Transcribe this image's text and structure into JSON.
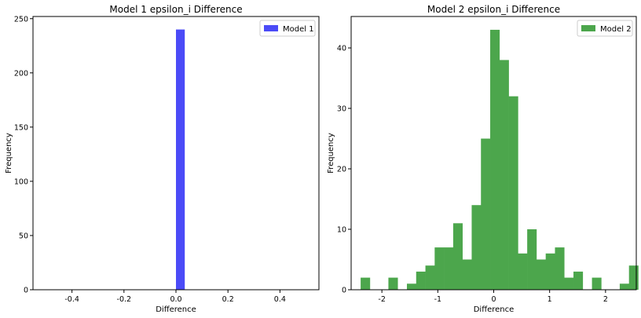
{
  "chart_data": [
    {
      "type": "bar",
      "title": "Model 1 epsilon_i Difference",
      "xlabel": "Difference",
      "ylabel": "Frequency",
      "xlim": [
        -0.55,
        0.55
      ],
      "ylim": [
        0,
        252
      ],
      "xticks": [
        -0.4,
        -0.2,
        0.0,
        0.2,
        0.4
      ],
      "xtick_labels": [
        "-0.4",
        "-0.2",
        "0.0",
        "0.2",
        "0.4"
      ],
      "yticks": [
        0,
        50,
        100,
        150,
        200,
        250
      ],
      "ytick_labels": [
        "0",
        "50",
        "100",
        "150",
        "200",
        "250"
      ],
      "legend_position": "top-right",
      "series": [
        {
          "name": "Model 1",
          "color": "#4b4bf7",
          "bins": [
            [
              0.0,
              0.033,
              240
            ]
          ]
        }
      ]
    },
    {
      "type": "bar",
      "title": "Model 2 epsilon_i Difference",
      "xlabel": "Difference",
      "ylabel": "Frequency",
      "xlim": [
        -2.55,
        2.55
      ],
      "ylim": [
        0,
        45.2
      ],
      "xticks": [
        -2,
        -1,
        0,
        1,
        2
      ],
      "xtick_labels": [
        "-2",
        "-1",
        "0",
        "1",
        "2"
      ],
      "yticks": [
        0,
        10,
        20,
        30,
        40
      ],
      "ytick_labels": [
        "0",
        "10",
        "20",
        "30",
        "40"
      ],
      "legend_position": "top-right",
      "series": [
        {
          "name": "Model 2",
          "color": "#4ca64c",
          "bin_start": -2.38,
          "bin_width": 0.1655,
          "counts": [
            2,
            0,
            0,
            2,
            0,
            1,
            3,
            4,
            7,
            7,
            11,
            5,
            14,
            25,
            43,
            38,
            32,
            6,
            10,
            5,
            6,
            7,
            2,
            3,
            0,
            2,
            0,
            0,
            1,
            4
          ]
        }
      ]
    }
  ]
}
